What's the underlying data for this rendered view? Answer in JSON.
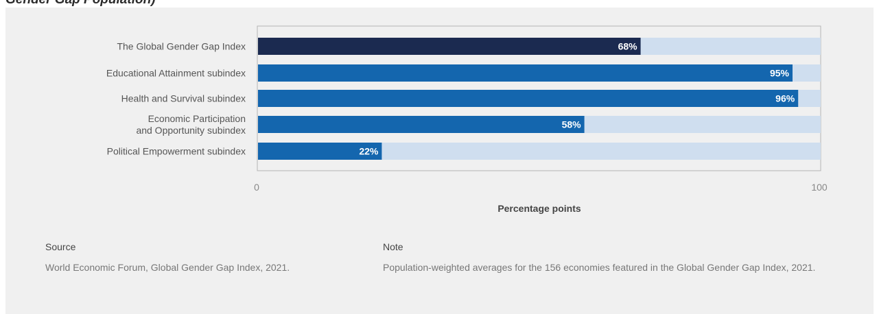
{
  "top_title": "Gender Gap Population)",
  "chart_data": {
    "type": "bar",
    "orientation": "horizontal",
    "categories": [
      [
        "The Global Gender Gap Index"
      ],
      [
        "Educational Attainment subindex"
      ],
      [
        "Health and Survival subindex"
      ],
      [
        "Economic Participation",
        "and Opportunity subindex"
      ],
      [
        "Political Empowerment subindex"
      ]
    ],
    "values": [
      68,
      95,
      96,
      58,
      22
    ],
    "value_labels": [
      "68%",
      "95%",
      "96%",
      "58%",
      "22%"
    ],
    "xlim": [
      0,
      100
    ],
    "x_ticks": [
      "0",
      "100"
    ],
    "xlabel": "Percentage points",
    "colors": {
      "highlight_bar": "#1b2a50",
      "bar": "#1466ae",
      "track": "#cfdeef",
      "frame": "#b5b5b5"
    }
  },
  "footer": {
    "source_heading": "Source",
    "source_text": "World Economic Forum, Global Gender Gap Index, 2021.",
    "note_heading": "Note",
    "note_text": "Population-weighted averages for the 156 economies featured in the Global Gender Gap Index, 2021."
  }
}
